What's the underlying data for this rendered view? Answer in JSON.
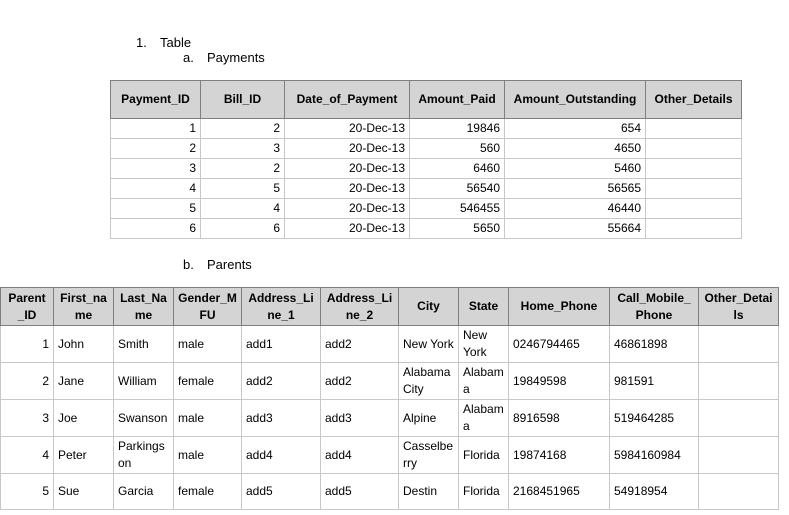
{
  "list": {
    "number": "1.",
    "title": "Table"
  },
  "payments": {
    "letter": "a.",
    "title": "Payments",
    "table": {
      "header": [
        "Payment_ID",
        "Bill_ID",
        "Date_of_Payment",
        "Amount_Paid",
        "Amount_Outstanding",
        "Other_Details"
      ],
      "rows": [
        [
          "1",
          "2",
          "20-Dec-13",
          "19846",
          "654",
          ""
        ],
        [
          "2",
          "3",
          "20-Dec-13",
          "560",
          "4650",
          ""
        ],
        [
          "3",
          "2",
          "20-Dec-13",
          "6460",
          "5460",
          ""
        ],
        [
          "4",
          "5",
          "20-Dec-13",
          "56540",
          "56565",
          ""
        ],
        [
          "5",
          "4",
          "20-Dec-13",
          "546455",
          "46440",
          ""
        ],
        [
          "6",
          "6",
          "20-Dec-13",
          "5650",
          "55664",
          ""
        ]
      ]
    }
  },
  "parents": {
    "letter": "b.",
    "title": "Parents",
    "table": {
      "header": [
        "Parent_ID",
        "First_name",
        "Last_Name",
        "Gender_MFU",
        "Address_Line_1",
        "Address_Line_2",
        "City",
        "State",
        "Home_Phone",
        "Call_Mobile_Phone",
        "Other_Details"
      ],
      "rows": [
        [
          "1",
          "John",
          "Smith",
          "male",
          "add1",
          "add2",
          "New York",
          "New York",
          "0246794465",
          "46861898",
          ""
        ],
        [
          "2",
          "Jane",
          "William",
          "female",
          "add2",
          "add2",
          "Alabama City",
          "Alabama",
          "19849598",
          "981591",
          ""
        ],
        [
          "3",
          "Joe",
          "Swanson",
          "male",
          "add3",
          "add3",
          "Alpine",
          "Alabama",
          "8916598",
          "519464285",
          ""
        ],
        [
          "4",
          "Peter",
          "Parkingson",
          "male",
          "add4",
          "add4",
          "Casselberry",
          "Florida",
          "19874168",
          "5984160984",
          ""
        ],
        [
          "5",
          "Sue",
          "Garcia",
          "female",
          "add5",
          "add5",
          "Destin",
          "Florida",
          "2168451965",
          "54918954",
          ""
        ]
      ]
    }
  }
}
